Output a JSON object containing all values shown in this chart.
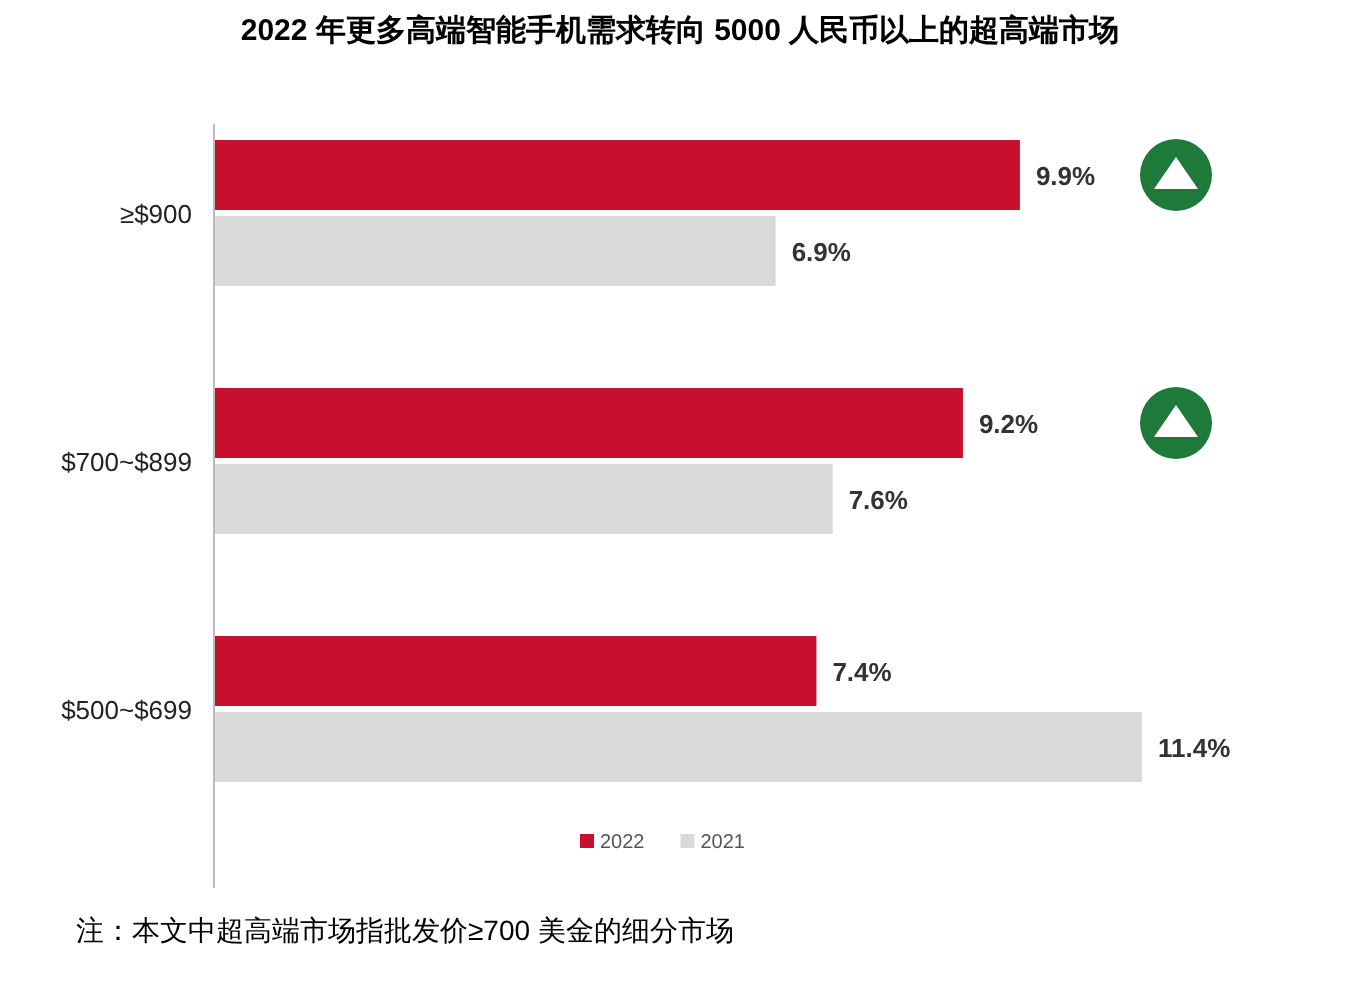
{
  "chart_data": {
    "type": "bar",
    "orientation": "horizontal",
    "title": "2022 年更多高端智能手机需求转向 5000 人民币以上的超高端市场",
    "categories": [
      "≥$900",
      "$700~$899",
      "$500~$699"
    ],
    "series": [
      {
        "name": "2022",
        "color": "#c8102e",
        "values": [
          9.9,
          9.2,
          7.4
        ],
        "value_labels": [
          "9.9%",
          "9.2%",
          "7.4%"
        ]
      },
      {
        "name": "2021",
        "color": "#d9d9d9",
        "values": [
          6.9,
          7.6,
          11.4
        ],
        "value_labels": [
          "6.9%",
          "7.6%",
          "11.4%"
        ]
      }
    ],
    "legend": "bottom",
    "annotations": [
      "注：本文中超高端市场指批发价≥700 美金的细分市场"
    ]
  }
}
